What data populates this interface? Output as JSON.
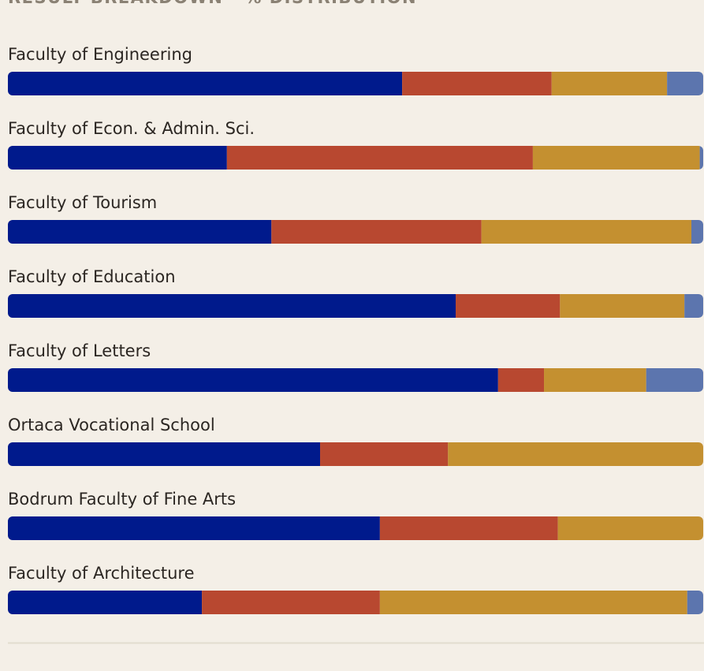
{
  "chart_data": {
    "type": "stacked-bar",
    "orientation": "horizontal",
    "title": "RESULT BREAKDOWN · % DISTRIBUTION",
    "categories": [
      "Faculty of Engineering",
      "Faculty of Econ. & Admin. Sci.",
      "Faculty of Tourism",
      "Faculty of Education",
      "Faculty of Letters",
      "Ortaca Vocational School",
      "Bodrum Faculty of Fine Arts",
      "Faculty of Architecture"
    ],
    "xlim": [
      0,
      100
    ],
    "series": [
      {
        "color": "#001a8c",
        "values": [
          56.7,
          31.5,
          37.9,
          64.4,
          70.5,
          44.9,
          53.5,
          27.9
        ]
      },
      {
        "color": "#b84830",
        "values": [
          21.5,
          44.0,
          30.2,
          15.0,
          6.6,
          18.4,
          25.6,
          25.6
        ]
      },
      {
        "color": "#c49030",
        "values": [
          16.6,
          24.0,
          30.2,
          17.9,
          14.7,
          36.7,
          20.9,
          44.2
        ]
      },
      {
        "color": "#5c75ae",
        "values": [
          5.2,
          0.5,
          1.8,
          2.7,
          8.2,
          0,
          0,
          2.3
        ]
      }
    ]
  }
}
